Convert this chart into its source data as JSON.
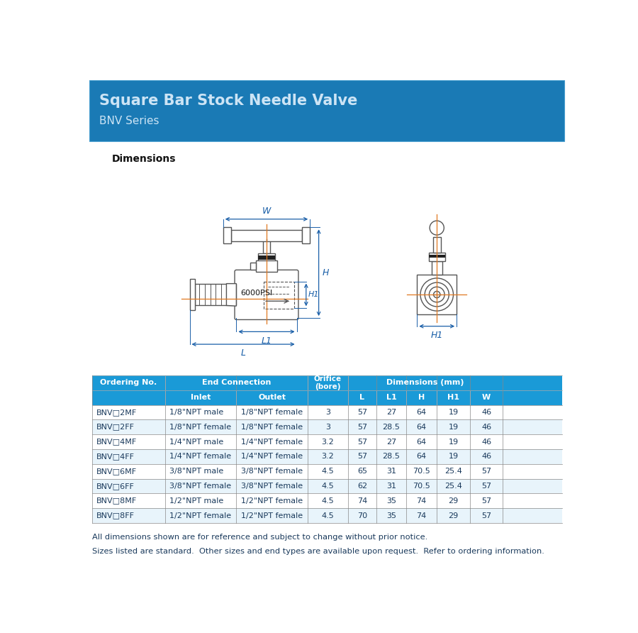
{
  "title": "Square Bar Stock Needle Valve",
  "subtitle": "BNV Series",
  "header_bg": "#1a7ab5",
  "header_text_color": "#cce4f5",
  "subtitle_color": "#cce4f5",
  "dimensions_label": "Dimensions",
  "table_header_bg": "#1a9ad7",
  "table_header_text": "#ffffff",
  "table_alt_row_bg": "#e8f4fb",
  "table_normal_row_bg": "#ffffff",
  "table_text_color": "#1a3a5c",
  "rows": [
    [
      "BNV□2MF",
      "1/8\"NPT male",
      "1/8\"NPT female",
      "3",
      "57",
      "27",
      "64",
      "19",
      "46"
    ],
    [
      "BNV□2FF",
      "1/8\"NPT female",
      "1/8\"NPT female",
      "3",
      "57",
      "28.5",
      "64",
      "19",
      "46"
    ],
    [
      "BNV□4MF",
      "1/4\"NPT male",
      "1/4\"NPT female",
      "3.2",
      "57",
      "27",
      "64",
      "19",
      "46"
    ],
    [
      "BNV□4FF",
      "1/4\"NPT female",
      "1/4\"NPT female",
      "3.2",
      "57",
      "28.5",
      "64",
      "19",
      "46"
    ],
    [
      "BNV□6MF",
      "3/8\"NPT male",
      "3/8\"NPT female",
      "4.5",
      "65",
      "31",
      "70.5",
      "25.4",
      "57"
    ],
    [
      "BNV□6FF",
      "3/8\"NPT female",
      "3/8\"NPT female",
      "4.5",
      "62",
      "31",
      "70.5",
      "25.4",
      "57"
    ],
    [
      "BNV□8MF",
      "1/2\"NPT male",
      "1/2\"NPT female",
      "4.5",
      "74",
      "35",
      "74",
      "29",
      "57"
    ],
    [
      "BNV□8FF",
      "1/2\"NPT female",
      "1/2\"NPT female",
      "4.5",
      "70",
      "35",
      "74",
      "29",
      "57"
    ]
  ],
  "footnote1": "All dimensions shown are for reference and subject to change without prior notice.",
  "footnote2": "Sizes listed are standard.  Other sizes and end types are available upon request.  Refer to ordering information.",
  "dim_color": "#1a5fa8",
  "arrow_color": "#e07820",
  "drawing_line_color": "#555555",
  "pressure_label": "6000PSI"
}
